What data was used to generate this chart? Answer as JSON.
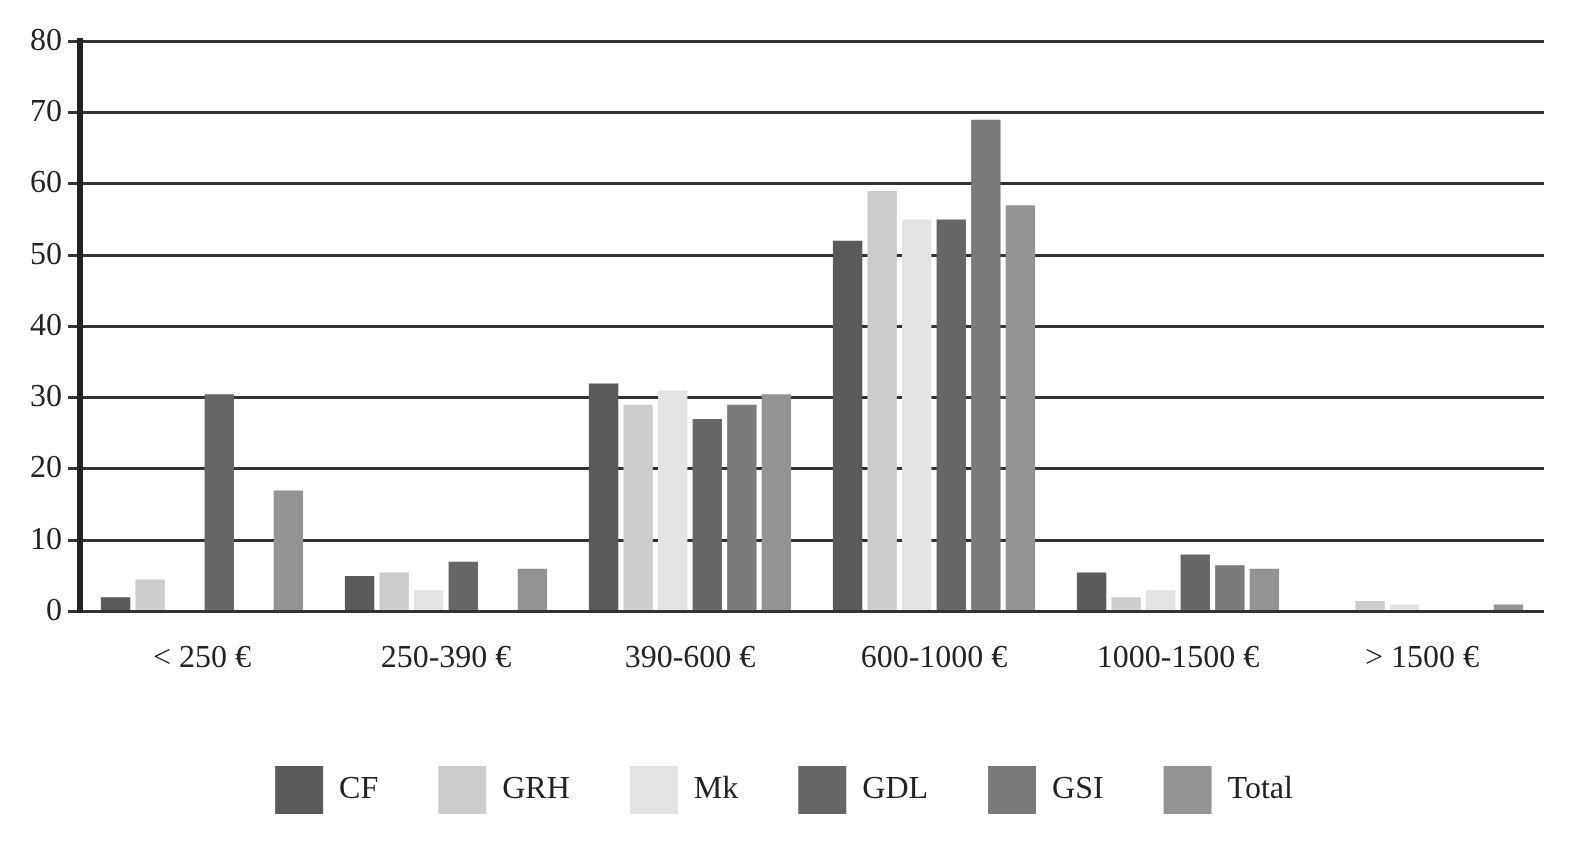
{
  "chart_data": {
    "type": "bar",
    "categories": [
      "< 250 €",
      "250-390 €",
      "390-600 €",
      "600-1000 €",
      "1000-1500 €",
      "> 1500 €"
    ],
    "series": [
      {
        "name": "CF",
        "color": "#5a5a5a",
        "values": [
          2,
          5,
          32,
          52,
          5.5,
          0
        ]
      },
      {
        "name": "GRH",
        "color": "#cccccc",
        "values": [
          4.5,
          5.5,
          29,
          59,
          2,
          1.5
        ]
      },
      {
        "name": "Mk",
        "color": "#e3e3e3",
        "values": [
          0,
          3,
          31,
          55,
          3,
          1
        ]
      },
      {
        "name": "GDL",
        "color": "#666666",
        "values": [
          30.5,
          7,
          27,
          55,
          8,
          0
        ]
      },
      {
        "name": "GSI",
        "color": "#7a7a7a",
        "values": [
          0,
          0,
          29,
          69,
          6.5,
          0
        ]
      },
      {
        "name": "Total",
        "color": "#939393",
        "values": [
          17,
          6,
          30.5,
          57,
          6,
          1
        ]
      }
    ],
    "ylim": [
      0,
      80
    ],
    "yticks": [
      0,
      10,
      20,
      30,
      40,
      50,
      60,
      70,
      80
    ],
    "grid": "y",
    "legend": "bottom"
  }
}
